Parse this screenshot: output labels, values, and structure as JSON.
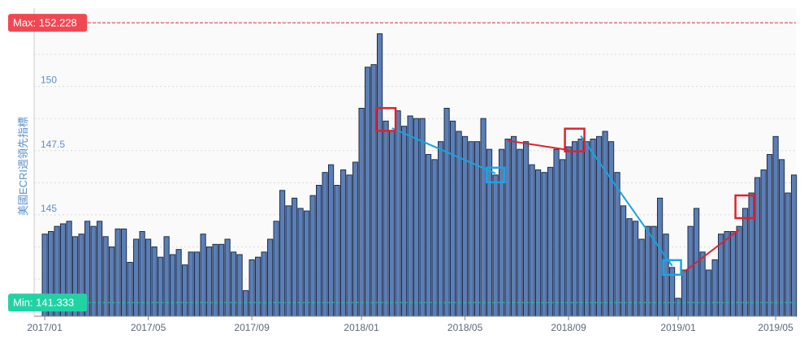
{
  "chart_data": {
    "type": "bar",
    "title": "",
    "ylabel": "美國ECRI週領先指標",
    "xlabel": "",
    "ylim": [
      140.8,
      152.8
    ],
    "y_ticks": [
      145,
      147.5,
      150
    ],
    "y_tick_labels": [
      "145",
      "147.5",
      "150"
    ],
    "x_tick_labels": [
      "2017/01",
      "2017/05",
      "2017/09",
      "2018/01",
      "2018/05",
      "2018/09",
      "2019/01",
      "2019/05"
    ],
    "x_tick_indices": [
      0,
      17,
      34,
      52,
      69,
      86,
      104,
      120
    ],
    "values": [
      144.0,
      144.1,
      144.3,
      144.4,
      144.5,
      143.9,
      144.0,
      144.5,
      144.3,
      144.5,
      143.9,
      143.5,
      144.2,
      144.2,
      142.9,
      143.8,
      144.1,
      143.8,
      143.5,
      143.1,
      143.9,
      143.2,
      143.4,
      142.8,
      143.3,
      143.3,
      144.0,
      143.5,
      143.6,
      143.6,
      143.8,
      143.3,
      143.2,
      141.8,
      143.0,
      143.1,
      143.3,
      143.8,
      144.5,
      145.7,
      145.1,
      145.4,
      145.0,
      144.9,
      145.5,
      145.9,
      146.4,
      146.7,
      145.9,
      146.5,
      146.3,
      146.8,
      148.9,
      150.5,
      150.6,
      151.8,
      148.4,
      148.0,
      148.8,
      148.2,
      148.6,
      148.5,
      148.5,
      147.1,
      146.9,
      147.6,
      148.9,
      148.4,
      148.0,
      147.8,
      147.6,
      147.6,
      148.5,
      147.3,
      146.3,
      147.3,
      147.7,
      147.8,
      147.3,
      147.6,
      146.7,
      146.5,
      146.4,
      146.6,
      147.3,
      146.9,
      147.4,
      147.6,
      147.7,
      147.6,
      147.7,
      147.8,
      148.0,
      147.6,
      146.4,
      145.1,
      144.6,
      144.5,
      143.8,
      144.3,
      144.3,
      145.4,
      144.0,
      142.7,
      141.5,
      142.6,
      144.3,
      145.0,
      143.3,
      142.6,
      143.0,
      144.0,
      144.1,
      144.1,
      144.3,
      145.0,
      145.6,
      146.2,
      146.5,
      147.1,
      147.8,
      146.9,
      145.6,
      146.3
    ],
    "max": {
      "label": "Max: 152.228",
      "value": 152.228
    },
    "min": {
      "label": "Min: 141.333",
      "value": 141.333
    },
    "annotations": {
      "red_boxes": [
        56,
        87,
        115
      ],
      "blue_boxes": [
        74,
        103
      ],
      "blue_lines": [
        [
          57,
          74
        ],
        [
          88,
          103
        ]
      ],
      "red_lines": [
        [
          76,
          86
        ],
        [
          105,
          114
        ]
      ]
    },
    "grid": true,
    "legend": "none"
  },
  "colors": {
    "bar_fill": "#5b7eb5",
    "bar_stroke": "#1f2f4f",
    "max_line": "#e8323f",
    "max_badge": "#f04853",
    "min_line": "#19c79d",
    "min_badge": "#21d3a3",
    "red_box": "#e0222e",
    "blue_box": "#1ea4e0",
    "blue_line": "#19a3dd",
    "red_line": "#e0222e",
    "grid": "#d9d9d9",
    "plot_bg": "#fafafa",
    "axis": "#888888"
  }
}
